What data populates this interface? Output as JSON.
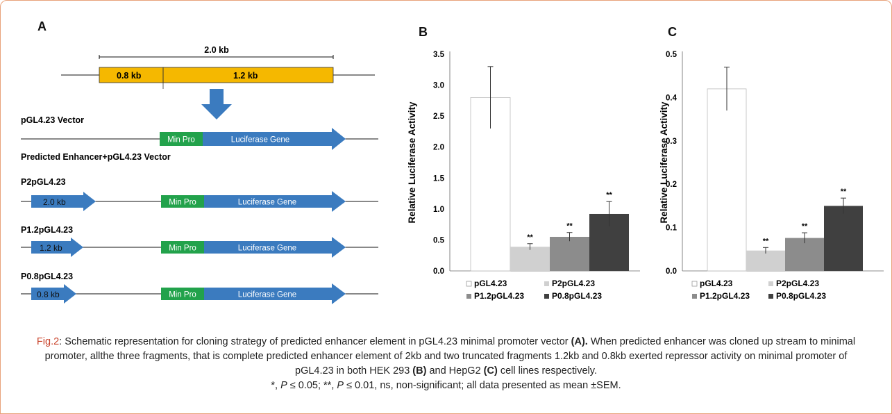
{
  "colors": {
    "frame": "#e8a27a",
    "gene_arrow": "#3b7bbf",
    "fragment_bar": "#f5b800",
    "min_pro": "#22a24b",
    "caption_label": "#c9432b",
    "bar_colors": [
      "#ffffff",
      "#d0d0d0",
      "#8c8c8c",
      "#404040"
    ]
  },
  "schematic": {
    "panel_letter": "A",
    "total_label": "2.0 kb",
    "frag_small": "0.8 kb",
    "frag_large": "1.2 kb",
    "vector_title": "pGL4.23 Vector",
    "enhancer_title": "Predicted Enhancer+pGL4.23 Vector",
    "min_pro": "Min Pro",
    "gene": "Luciferase Gene",
    "constructs": [
      {
        "name": "P2pGL4.23",
        "frag": "2.0 kb"
      },
      {
        "name": "P1.2pGL4.23",
        "frag": "1.2 kb"
      },
      {
        "name": "P0.8pGL4.23",
        "frag": "0.8 kb"
      }
    ]
  },
  "chart_data": [
    {
      "panel": "B",
      "type": "bar",
      "ylabel": "Relative Luciferase Activity",
      "ylim": [
        0,
        3.5
      ],
      "yticks": [
        "0.0",
        "0.5",
        "1.0",
        "1.5",
        "2.0",
        "2.5",
        "3.0",
        "3.5"
      ],
      "categories": [
        "pGL4.23",
        "P2pGL4.23",
        "P1.2pGL4.23",
        "P0.8pGL4.23"
      ],
      "values": [
        2.8,
        0.39,
        0.55,
        0.92
      ],
      "errors": [
        0.5,
        0.05,
        0.07,
        0.2
      ],
      "significance": [
        "",
        "**",
        "**",
        "**"
      ],
      "legend": [
        "pGL4.23",
        "P2pGL4.23",
        "P1.2pGL4.23",
        "P0.8pGL4.23"
      ],
      "legend_position": "bottom",
      "grid": false
    },
    {
      "panel": "C",
      "type": "bar",
      "ylabel": "Relative Luciferase Activity",
      "ylim": [
        0,
        0.5
      ],
      "yticks": [
        "0.0",
        "0.1",
        "0.2",
        "0.3",
        "0.4",
        "0.5"
      ],
      "categories": [
        "pGL4.23",
        "P2pGL4.23",
        "P1.2pGL4.23",
        "P0.8pGL4.23"
      ],
      "values": [
        0.42,
        0.047,
        0.076,
        0.15
      ],
      "errors": [
        0.05,
        0.007,
        0.012,
        0.018
      ],
      "significance": [
        "",
        "**",
        "**",
        "**"
      ],
      "legend": [
        "pGL4.23",
        "P2pGL4.23",
        "P1.2pGL4.23",
        "P0.8pGL4.23"
      ],
      "legend_position": "bottom",
      "grid": false
    }
  ],
  "caption": {
    "fig_label": "Fig.2",
    "part1": ": Schematic representation for cloning strategy of predicted enhancer element in pGL4.23 minimal promoter vector ",
    "panel_a": "(A).",
    "part2": " When predicted enhancer was cloned up stream to minimal promoter, allthe three fragments, that is complete predicted enhancer element of 2kb and two truncated fragments 1.2kb and 0.8kb exerted repressor activity on minimal promoter of pGL4.23 in both HEK 293 ",
    "panel_b": "(B)",
    "part3": " and HepG2 ",
    "panel_c": "(C)",
    "part4": " cell lines respectively.",
    "line2_a": "*, ",
    "p1": "P",
    "line2_b": " ≤ 0.05; **, ",
    "p2": "P",
    "line2_c": " ≤ 0.01, ns, non-significant; all data presented as mean ±SEM."
  }
}
